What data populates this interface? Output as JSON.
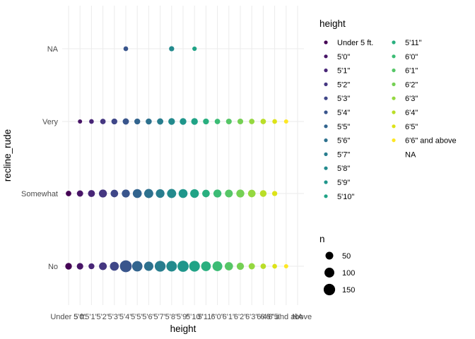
{
  "chart_data": {
    "type": "scatter",
    "xlabel": "height",
    "ylabel": "recline_rude",
    "x_categories": [
      "Under 5 ft.",
      "5'0\"",
      "5'1\"",
      "5'2\"",
      "5'3\"",
      "5'4\"",
      "5'5\"",
      "5'6\"",
      "5'7\"",
      "5'8\"",
      "5'9\"",
      "5'10\"",
      "5'11\"",
      "6'0\"",
      "6'1\"",
      "6'2\"",
      "6'3\"",
      "6'4\"",
      "6'5\"",
      "6'6\" and above",
      "NA"
    ],
    "x_tick_labels": [
      "Under 5 ft.",
      "5'0\"",
      "5'1\"",
      "5'2\"",
      "5'3\"",
      "5'4\"",
      "5'5\"",
      "5'6\"",
      "5'7\"",
      "5'8\"",
      "5'9\"",
      "5'10\"",
      "5'11\"",
      "6'0\"",
      "6'1\"",
      "6'2\"",
      "6'3\"",
      "6'4\"",
      "6'5\"",
      "6'6\" and above",
      "NA"
    ],
    "y_categories": [
      "No",
      "Somewhat",
      "Very",
      "NA"
    ],
    "grid": true,
    "legend_position": "right",
    "color_legend": {
      "title": "height",
      "entries": [
        {
          "label": "Under 5 ft.",
          "color": "#440154"
        },
        {
          "label": "5'0\"",
          "color": "#481567"
        },
        {
          "label": "5'1\"",
          "color": "#482677"
        },
        {
          "label": "5'2\"",
          "color": "#453781"
        },
        {
          "label": "5'3\"",
          "color": "#3f4788"
        },
        {
          "label": "5'4\"",
          "color": "#39558c"
        },
        {
          "label": "5'5\"",
          "color": "#32648e"
        },
        {
          "label": "5'6\"",
          "color": "#2d718e"
        },
        {
          "label": "5'7\"",
          "color": "#287d8e"
        },
        {
          "label": "5'8\"",
          "color": "#238a8d"
        },
        {
          "label": "5'9\"",
          "color": "#1f968b"
        },
        {
          "label": "5'10\"",
          "color": "#20a386"
        },
        {
          "label": "5'11\"",
          "color": "#29af7f"
        },
        {
          "label": "6'0\"",
          "color": "#3cbc75"
        },
        {
          "label": "6'1\"",
          "color": "#56c667"
        },
        {
          "label": "6'2\"",
          "color": "#75d054"
        },
        {
          "label": "6'3\"",
          "color": "#95d840"
        },
        {
          "label": "6'4\"",
          "color": "#bade28"
        },
        {
          "label": "6'5\"",
          "color": "#dde318"
        },
        {
          "label": "6'6\" and above",
          "color": "#fde725"
        },
        {
          "label": "NA",
          "color": null
        }
      ]
    },
    "size_legend": {
      "title": "n",
      "entries": [
        50,
        100,
        150
      ]
    },
    "size_range_n": [
      1,
      170
    ],
    "points": [
      {
        "x": "Under 5 ft.",
        "y": "No",
        "n": 30
      },
      {
        "x": "5'0\"",
        "y": "No",
        "n": 28
      },
      {
        "x": "5'1\"",
        "y": "No",
        "n": 20
      },
      {
        "x": "5'2\"",
        "y": "No",
        "n": 50
      },
      {
        "x": "5'3\"",
        "y": "No",
        "n": 75
      },
      {
        "x": "5'4\"",
        "y": "No",
        "n": 165
      },
      {
        "x": "5'5\"",
        "y": "No",
        "n": 115
      },
      {
        "x": "5'6\"",
        "y": "No",
        "n": 85
      },
      {
        "x": "5'7\"",
        "y": "No",
        "n": 130
      },
      {
        "x": "5'8\"",
        "y": "No",
        "n": 120
      },
      {
        "x": "5'9\"",
        "y": "No",
        "n": 140
      },
      {
        "x": "5'10\"",
        "y": "No",
        "n": 125
      },
      {
        "x": "5'11\"",
        "y": "No",
        "n": 95
      },
      {
        "x": "6'0\"",
        "y": "No",
        "n": 100
      },
      {
        "x": "6'1\"",
        "y": "No",
        "n": 60
      },
      {
        "x": "6'2\"",
        "y": "No",
        "n": 40
      },
      {
        "x": "6'3\"",
        "y": "No",
        "n": 25
      },
      {
        "x": "6'4\"",
        "y": "No",
        "n": 15
      },
      {
        "x": "6'5\"",
        "y": "No",
        "n": 8
      },
      {
        "x": "6'6\" and above",
        "y": "No",
        "n": 5
      },
      {
        "x": "Under 5 ft.",
        "y": "Somewhat",
        "n": 15
      },
      {
        "x": "5'0\"",
        "y": "Somewhat",
        "n": 25
      },
      {
        "x": "5'1\"",
        "y": "Somewhat",
        "n": 35
      },
      {
        "x": "5'2\"",
        "y": "Somewhat",
        "n": 55
      },
      {
        "x": "5'3\"",
        "y": "Somewhat",
        "n": 45
      },
      {
        "x": "5'4\"",
        "y": "Somewhat",
        "n": 55
      },
      {
        "x": "5'5\"",
        "y": "Somewhat",
        "n": 75
      },
      {
        "x": "5'6\"",
        "y": "Somewhat",
        "n": 80
      },
      {
        "x": "5'7\"",
        "y": "Somewhat",
        "n": 70
      },
      {
        "x": "5'8\"",
        "y": "Somewhat",
        "n": 80
      },
      {
        "x": "5'9\"",
        "y": "Somewhat",
        "n": 75
      },
      {
        "x": "5'10\"",
        "y": "Somewhat",
        "n": 70
      },
      {
        "x": "5'11\"",
        "y": "Somewhat",
        "n": 45
      },
      {
        "x": "6'0\"",
        "y": "Somewhat",
        "n": 55
      },
      {
        "x": "6'1\"",
        "y": "Somewhat",
        "n": 50
      },
      {
        "x": "6'2\"",
        "y": "Somewhat",
        "n": 55
      },
      {
        "x": "6'3\"",
        "y": "Somewhat",
        "n": 45
      },
      {
        "x": "6'4\"",
        "y": "Somewhat",
        "n": 30
      },
      {
        "x": "6'5\"",
        "y": "Somewhat",
        "n": 12
      },
      {
        "x": "5'0\"",
        "y": "Very",
        "n": 5
      },
      {
        "x": "5'1\"",
        "y": "Very",
        "n": 8
      },
      {
        "x": "5'2\"",
        "y": "Very",
        "n": 15
      },
      {
        "x": "5'3\"",
        "y": "Very",
        "n": 20
      },
      {
        "x": "5'4\"",
        "y": "Very",
        "n": 25
      },
      {
        "x": "5'5\"",
        "y": "Very",
        "n": 20
      },
      {
        "x": "5'6\"",
        "y": "Very",
        "n": 22
      },
      {
        "x": "5'7\"",
        "y": "Very",
        "n": 25
      },
      {
        "x": "5'8\"",
        "y": "Very",
        "n": 30
      },
      {
        "x": "5'9\"",
        "y": "Very",
        "n": 30
      },
      {
        "x": "5'10\"",
        "y": "Very",
        "n": 30
      },
      {
        "x": "5'11\"",
        "y": "Very",
        "n": 20
      },
      {
        "x": "6'0\"",
        "y": "Very",
        "n": 15
      },
      {
        "x": "6'1\"",
        "y": "Very",
        "n": 18
      },
      {
        "x": "6'2\"",
        "y": "Very",
        "n": 18
      },
      {
        "x": "6'3\"",
        "y": "Very",
        "n": 15
      },
      {
        "x": "6'4\"",
        "y": "Very",
        "n": 15
      },
      {
        "x": "6'5\"",
        "y": "Very",
        "n": 8
      },
      {
        "x": "6'6\" and above",
        "y": "Very",
        "n": 5
      },
      {
        "x": "5'4\"",
        "y": "NA",
        "n": 8
      },
      {
        "x": "5'8\"",
        "y": "NA",
        "n": 12
      },
      {
        "x": "5'10\"",
        "y": "NA",
        "n": 6
      }
    ]
  }
}
